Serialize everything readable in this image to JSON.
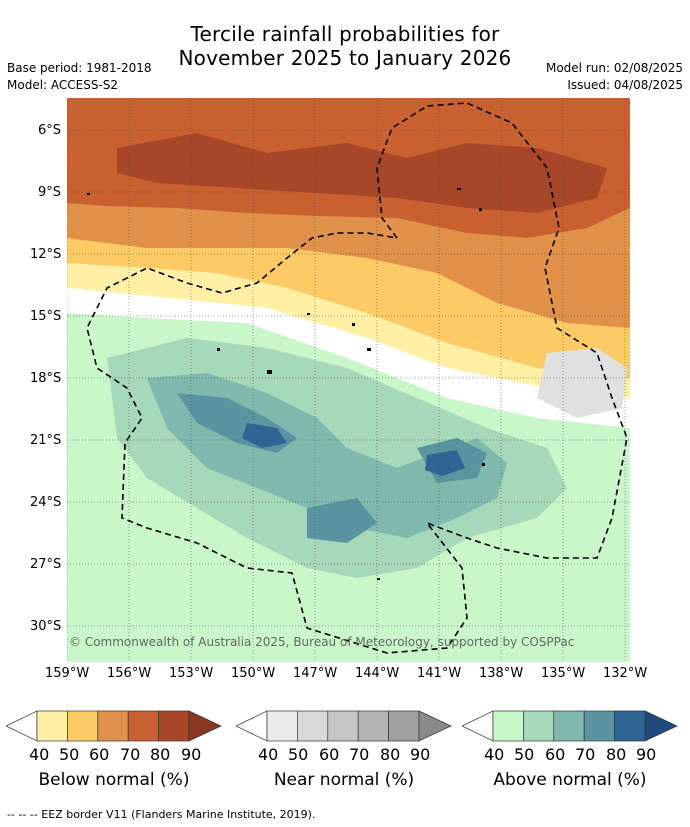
{
  "title": {
    "line1": "Tercile rainfall probabilities for",
    "line2": "November 2025 to January 2026"
  },
  "meta": {
    "base_period": "Base period: 1981-2018",
    "model": "Model: ACCESS-S2",
    "model_run": "Model run: 02/08/2025",
    "issued": "Issued: 04/08/2025"
  },
  "map": {
    "copyright": "© Commonwealth of Australia 2025, Bureau of Meteorology, supported by COSPPac",
    "lat_labels": [
      "6°S",
      "9°S",
      "12°S",
      "15°S",
      "18°S",
      "21°S",
      "24°S",
      "27°S",
      "30°S"
    ],
    "lon_labels": [
      "159°W",
      "156°W",
      "153°W",
      "150°W",
      "147°W",
      "144°W",
      "141°W",
      "138°W",
      "135°W",
      "132°W"
    ]
  },
  "legends": [
    {
      "label": "Below normal (%)",
      "ticks": [
        "40",
        "50",
        "60",
        "70",
        "80",
        "90"
      ],
      "colors": [
        "#ffffff",
        "#fff0a6",
        "#fdcb66",
        "#e0914a",
        "#c8612f",
        "#a74727",
        "#893623"
      ]
    },
    {
      "label": "Near normal (%)",
      "ticks": [
        "40",
        "50",
        "60",
        "70",
        "80",
        "90"
      ],
      "colors": [
        "#ffffff",
        "#ececec",
        "#d9d9d9",
        "#c6c6c6",
        "#b4b4b4",
        "#a0a0a0",
        "#8a8a8a"
      ]
    },
    {
      "label": "Above normal (%)",
      "ticks": [
        "40",
        "50",
        "60",
        "70",
        "80",
        "90"
      ],
      "colors": [
        "#ffffff",
        "#c9f7c9",
        "#a6d8b9",
        "#80b9ad",
        "#5a94a1",
        "#2f6595",
        "#1d4b80"
      ]
    }
  ],
  "footer": "-- -- -- EEZ border V11 (Flanders Marine Institute, 2019)."
}
